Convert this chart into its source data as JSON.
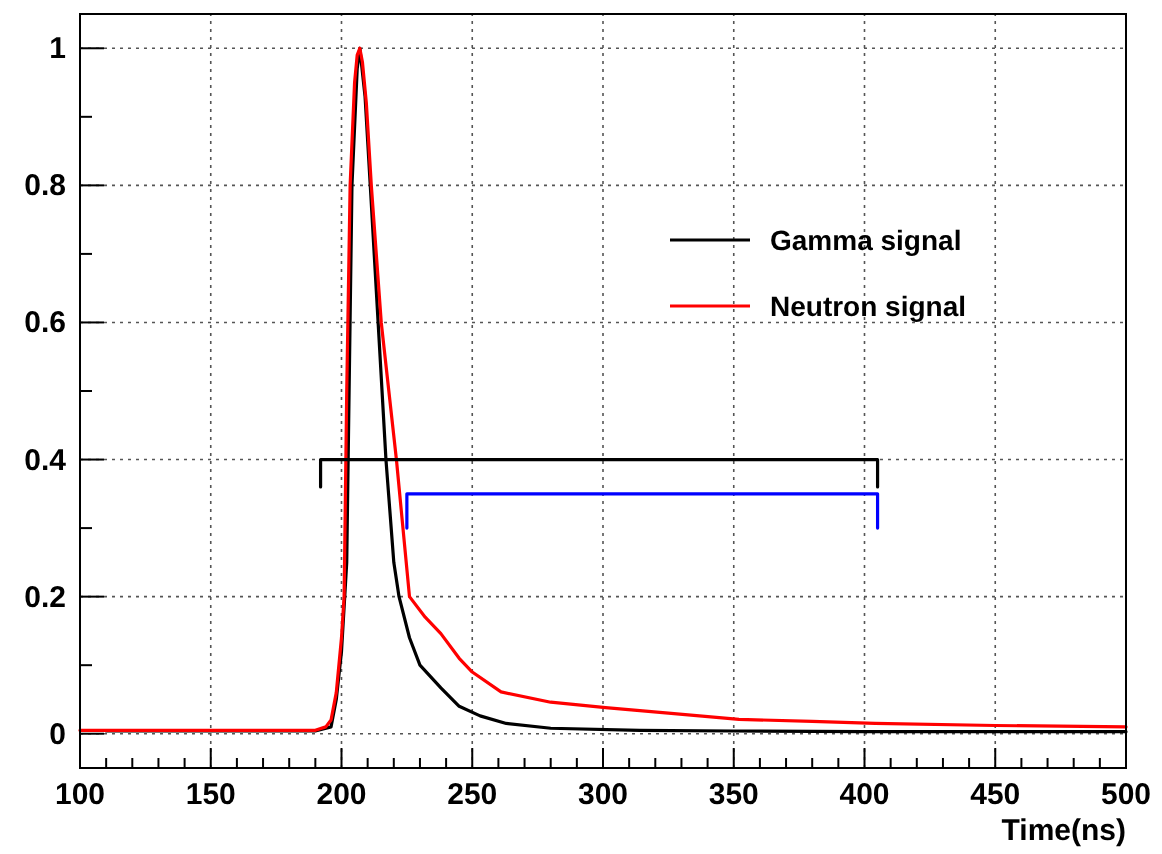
{
  "chart_data": {
    "type": "line",
    "xlabel": "Time(ns)",
    "xlim": [
      100,
      500
    ],
    "ylim": [
      -0.05,
      1.05
    ],
    "xticks": [
      100,
      {
        "value": 110,
        "label": null
      },
      {
        "value": 120,
        "label": null
      },
      {
        "value": 130,
        "label": null
      },
      {
        "value": 140,
        "label": null
      },
      150,
      {
        "value": 160,
        "label": null
      },
      {
        "value": 170,
        "label": null
      },
      {
        "value": 180,
        "label": null
      },
      {
        "value": 190,
        "label": null
      },
      200,
      {
        "value": 210,
        "label": null
      },
      {
        "value": 220,
        "label": null
      },
      {
        "value": 230,
        "label": null
      },
      {
        "value": 240,
        "label": null
      },
      250,
      {
        "value": 260,
        "label": null
      },
      {
        "value": 270,
        "label": null
      },
      {
        "value": 280,
        "label": null
      },
      {
        "value": 290,
        "label": null
      },
      300,
      {
        "value": 310,
        "label": null
      },
      {
        "value": 320,
        "label": null
      },
      {
        "value": 330,
        "label": null
      },
      {
        "value": 340,
        "label": null
      },
      350,
      {
        "value": 360,
        "label": null
      },
      {
        "value": 370,
        "label": null
      },
      {
        "value": 380,
        "label": null
      },
      {
        "value": 390,
        "label": null
      },
      400,
      {
        "value": 410,
        "label": null
      },
      {
        "value": 420,
        "label": null
      },
      {
        "value": 430,
        "label": null
      },
      {
        "value": 440,
        "label": null
      },
      450,
      {
        "value": 460,
        "label": null
      },
      {
        "value": 470,
        "label": null
      },
      {
        "value": 480,
        "label": null
      },
      {
        "value": 490,
        "label": null
      },
      500
    ],
    "yticks": [
      0,
      {
        "value": 0.1,
        "label": null
      },
      0.2,
      {
        "value": 0.3,
        "label": null
      },
      0.4,
      {
        "value": 0.5,
        "label": null
      },
      0.6,
      {
        "value": 0.7,
        "label": null
      },
      0.8,
      {
        "value": 0.9,
        "label": null
      },
      1
    ],
    "grid": true,
    "legend": "top right",
    "line_style": "solid",
    "marker": "none",
    "series": [
      {
        "name": "Gamma signal",
        "color": "#000000",
        "x": [
          110,
          150,
          190,
          196,
          198,
          200,
          202,
          204,
          206,
          207,
          209,
          211,
          214,
          217,
          220,
          222,
          226,
          230,
          238,
          245,
          253,
          263,
          280,
          314,
          350,
          400,
          450,
          500
        ],
        "values": [
          0.004,
          0.004,
          0.004,
          0.01,
          0.05,
          0.12,
          0.25,
          0.8,
          0.97,
          1.0,
          0.93,
          0.8,
          0.6,
          0.4,
          0.25,
          0.2,
          0.14,
          0.1,
          0.067,
          0.04,
          0.026,
          0.015,
          0.008,
          0.005,
          0.004,
          0.003,
          0.003,
          0.003
        ]
      },
      {
        "name": "Neutron signal",
        "color": "#ff0000",
        "x": [
          100,
          150,
          190,
          194,
          196,
          198,
          200,
          201,
          202,
          203.3,
          205,
          206,
          207,
          208,
          209.5,
          211.4,
          215.2,
          221,
          226,
          232,
          238,
          245,
          250,
          261,
          280,
          301,
          325,
          352,
          380,
          404,
          450,
          500
        ],
        "values": [
          0.005,
          0.005,
          0.005,
          0.01,
          0.02,
          0.06,
          0.14,
          0.2,
          0.5,
          0.8,
          0.95,
          0.99,
          1.0,
          0.98,
          0.92,
          0.8,
          0.6,
          0.4,
          0.2,
          0.17,
          0.146,
          0.11,
          0.09,
          0.061,
          0.046,
          0.038,
          0.03,
          0.021,
          0.018,
          0.015,
          0.012,
          0.01
        ]
      },
      {
        "color": "#000000",
        "x": [
          192,
          192,
          405,
          405
        ],
        "values": [
          0.36,
          0.4,
          0.4,
          0.36
        ]
      },
      {
        "color": "#0000ff",
        "x": [
          225,
          225,
          405,
          405
        ],
        "values": [
          0.3,
          0.35,
          0.35,
          0.3
        ]
      }
    ]
  }
}
